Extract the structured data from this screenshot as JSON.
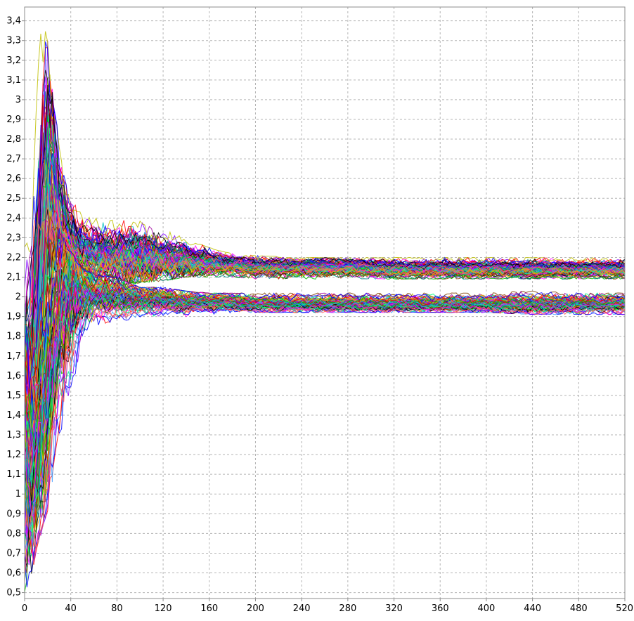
{
  "chart_data": {
    "type": "line",
    "title": "",
    "xlabel": "",
    "ylabel": "",
    "xlim": [
      0,
      520
    ],
    "ylim": [
      0.47,
      3.47
    ],
    "x_ticks": [
      0,
      40,
      80,
      120,
      160,
      200,
      240,
      280,
      320,
      360,
      400,
      440,
      480,
      520
    ],
    "y_ticks": [
      0.5,
      0.6,
      0.7,
      0.8,
      0.9,
      1.0,
      1.1,
      1.2,
      1.3,
      1.4,
      1.5,
      1.6,
      1.7,
      1.8,
      1.9,
      2.0,
      2.1,
      2.2,
      2.3,
      2.4,
      2.5,
      2.6,
      2.7,
      2.8,
      2.9,
      3.0,
      3.1,
      3.2,
      3.3,
      3.4
    ],
    "x_tick_labels": [
      "0",
      "40",
      "80",
      "120",
      "160",
      "200",
      "240",
      "280",
      "320",
      "360",
      "400",
      "440",
      "480",
      "520"
    ],
    "y_tick_labels": [
      "0,5",
      "0,6",
      "0,7",
      "0,8",
      "0,9",
      "1",
      "1,1",
      "1,2",
      "1,3",
      "1,4",
      "1,5",
      "1,6",
      "1,7",
      "1,8",
      "1,9",
      "2",
      "2,1",
      "2,2",
      "2,3",
      "2,4",
      "2,5",
      "2,6",
      "2,7",
      "2,8",
      "2,9",
      "3",
      "3,1",
      "3,2",
      "3,3",
      "3,4"
    ],
    "grid": true,
    "legend": "none",
    "series_count": 200,
    "series_colors": [
      "#ff0000",
      "#0000ff",
      "#00c000",
      "#ff00ff",
      "#00c0c0",
      "#ffa500",
      "#8000ff",
      "#000000",
      "#008080",
      "#ff6060",
      "#40a0ff",
      "#c0c000",
      "#a000a0",
      "#00ff80",
      "#804000"
    ],
    "clusters": [
      {
        "name": "",
        "series_count": 100,
        "x": [
          0,
          5,
          10,
          15,
          20,
          25,
          30,
          40,
          50,
          60,
          80,
          100,
          120,
          140,
          160,
          180,
          200,
          240,
          280,
          320,
          360,
          400,
          440,
          480,
          520
        ],
        "mean": [
          1.3,
          1.45,
          1.75,
          2.25,
          2.55,
          2.5,
          2.35,
          2.25,
          2.22,
          2.2,
          2.2,
          2.2,
          2.19,
          2.18,
          2.17,
          2.16,
          2.15,
          2.15,
          2.15,
          2.14,
          2.14,
          2.14,
          2.14,
          2.14,
          2.14
        ],
        "min": [
          0.5,
          0.65,
          0.8,
          1.1,
          1.4,
          1.7,
          1.9,
          2.0,
          2.02,
          2.03,
          2.05,
          2.07,
          2.08,
          2.1,
          2.1,
          2.1,
          2.09,
          2.09,
          2.09,
          2.09,
          2.09,
          2.09,
          2.09,
          2.09,
          2.09
        ],
        "max": [
          2.3,
          2.6,
          3.0,
          3.46,
          3.3,
          3.0,
          2.8,
          2.5,
          2.42,
          2.4,
          2.4,
          2.45,
          2.35,
          2.3,
          2.25,
          2.22,
          2.21,
          2.2,
          2.2,
          2.2,
          2.2,
          2.2,
          2.2,
          2.2,
          2.2
        ]
      },
      {
        "name": "",
        "series_count": 100,
        "x": [
          0,
          5,
          10,
          15,
          20,
          25,
          30,
          40,
          50,
          60,
          80,
          100,
          120,
          140,
          160,
          180,
          200,
          240,
          280,
          320,
          360,
          400,
          440,
          480,
          520
        ],
        "mean": [
          1.2,
          1.1,
          1.15,
          1.3,
          1.5,
          1.7,
          1.85,
          1.97,
          2.0,
          2.0,
          1.99,
          1.98,
          1.98,
          1.97,
          1.97,
          1.97,
          1.96,
          1.96,
          1.96,
          1.96,
          1.96,
          1.96,
          1.96,
          1.96,
          1.96
        ],
        "min": [
          0.5,
          0.55,
          0.7,
          0.8,
          0.9,
          1.1,
          1.2,
          1.3,
          1.75,
          1.85,
          1.88,
          1.88,
          1.9,
          1.9,
          1.91,
          1.92,
          1.92,
          1.92,
          1.92,
          1.92,
          1.92,
          1.92,
          1.91,
          1.91,
          1.91
        ],
        "max": [
          2.1,
          2.2,
          2.3,
          2.4,
          2.45,
          2.4,
          2.35,
          2.25,
          2.15,
          2.12,
          2.1,
          2.05,
          2.05,
          2.03,
          2.02,
          2.02,
          2.02,
          2.02,
          2.02,
          2.02,
          2.02,
          2.02,
          2.03,
          2.02,
          2.02
        ]
      }
    ]
  }
}
